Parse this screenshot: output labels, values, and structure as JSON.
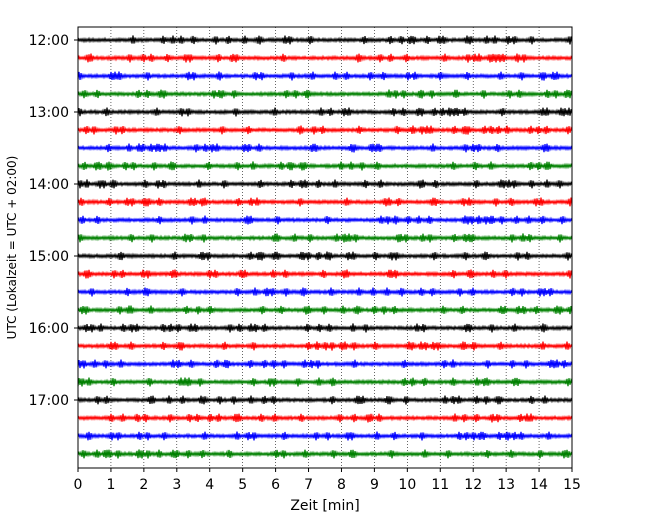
{
  "chart_data": {
    "type": "line",
    "title": "",
    "xlabel": "Zeit  [min]",
    "ylabel": "UTC (Lokalzeit = UTC + 02:00)",
    "xlim": [
      0,
      15
    ],
    "x_ticks": [
      0,
      1,
      2,
      3,
      4,
      5,
      6,
      7,
      8,
      9,
      10,
      11,
      12,
      13,
      14,
      15
    ],
    "x_tick_labels": [
      "0",
      "1",
      "2",
      "3",
      "4",
      "5",
      "6",
      "7",
      "8",
      "9",
      "10",
      "11",
      "12",
      "13",
      "14",
      "15"
    ],
    "y_tick_labels": [
      "12:00",
      "13:00",
      "14:00",
      "15:00",
      "16:00",
      "17:00"
    ],
    "grid": "vertical dotted",
    "legend": "none",
    "trace_colors": [
      "#000000",
      "#ff0000",
      "#0000ff",
      "#008000"
    ],
    "traces": [
      {
        "start": "12:00"
      },
      {
        "start": "12:15"
      },
      {
        "start": "12:30"
      },
      {
        "start": "12:45"
      },
      {
        "start": "13:00"
      },
      {
        "start": "13:15"
      },
      {
        "start": "13:30"
      },
      {
        "start": "13:45"
      },
      {
        "start": "14:00"
      },
      {
        "start": "14:15"
      },
      {
        "start": "14:30"
      },
      {
        "start": "14:45"
      },
      {
        "start": "15:00"
      },
      {
        "start": "15:15"
      },
      {
        "start": "15:30"
      },
      {
        "start": "15:45"
      },
      {
        "start": "16:00"
      },
      {
        "start": "16:15"
      },
      {
        "start": "16:30"
      },
      {
        "start": "16:45"
      },
      {
        "start": "17:00"
      },
      {
        "start": "17:15"
      },
      {
        "start": "17:30"
      },
      {
        "start": "17:45"
      }
    ]
  }
}
